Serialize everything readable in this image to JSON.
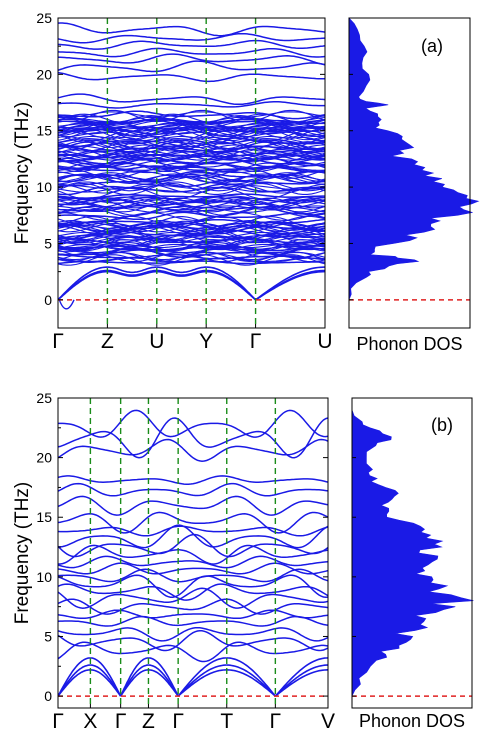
{
  "chart_data": [
    {
      "type": "line",
      "panel_label": "(a)",
      "ylabel": "Frequency (THz)",
      "ylim": [
        -2.5,
        25
      ],
      "yticks": [
        0,
        5,
        10,
        15,
        20,
        25
      ],
      "x_tick_labels": [
        "Γ",
        "Z",
        "U",
        "Y",
        "Γ",
        "U"
      ],
      "x_tick_positions": [
        0,
        0.185,
        0.37,
        0.555,
        0.74,
        1.0
      ],
      "zero_line": 0,
      "colors": {
        "bands": "#1a1ae6",
        "high_symmetry_lines": "#1a8c1a",
        "fermi_line": "#e02020"
      },
      "acoustic_max": [
        2.6,
        2.5,
        2.9
      ],
      "band_count_estimate": 120,
      "dense_band_region": [
        3.5,
        16.5
      ],
      "band_frequencies_at_gamma": [
        3.3,
        3.8,
        4.1,
        4.6,
        5.2,
        5.8,
        6.3,
        6.9,
        7.4,
        8.0,
        8.6,
        9.2,
        9.8,
        10.4,
        11.0,
        11.6,
        12.2,
        12.8,
        13.4,
        14.0,
        15.0,
        15.8,
        16.4,
        17.3,
        17.8,
        19.8,
        20.6,
        21.3,
        21.9,
        22.6,
        23.2,
        24.0
      ],
      "dos": {
        "xlabel": "Phonon DOS",
        "freq": [
          0,
          1,
          2,
          2.5,
          3,
          3.4,
          3.7,
          4,
          4.5,
          5,
          5.5,
          6,
          6.5,
          7,
          7.5,
          8,
          8.5,
          9,
          9.5,
          10,
          10.5,
          11,
          11.5,
          12,
          12.5,
          13,
          13.5,
          14,
          14.5,
          15,
          15.5,
          16,
          16.5,
          17,
          17.3,
          17.6,
          18,
          19,
          20,
          21,
          22,
          23,
          24,
          25
        ],
        "value": [
          0,
          0.05,
          0.12,
          0.2,
          0.35,
          0.55,
          0.45,
          0.2,
          0.22,
          0.4,
          0.55,
          0.6,
          0.7,
          0.78,
          0.88,
          0.95,
          1.0,
          0.96,
          0.88,
          0.8,
          0.72,
          0.66,
          0.6,
          0.55,
          0.5,
          0.48,
          0.58,
          0.45,
          0.42,
          0.3,
          0.25,
          0.28,
          0.22,
          0.15,
          0.35,
          0.12,
          0.1,
          0.14,
          0.16,
          0.1,
          0.14,
          0.12,
          0.1,
          0
        ]
      }
    },
    {
      "type": "line",
      "panel_label": "(b)",
      "ylabel": "Frequency (THz)",
      "ylim": [
        -1,
        25
      ],
      "yticks": [
        0,
        5,
        10,
        15,
        20,
        25
      ],
      "x_tick_labels": [
        "Γ",
        "X",
        "Γ",
        "Z",
        "Γ",
        "T",
        "Γ",
        "V"
      ],
      "x_tick_positions": [
        0,
        0.12,
        0.232,
        0.335,
        0.445,
        0.625,
        0.805,
        1.0
      ],
      "zero_line": 0,
      "colors": {
        "bands": "#1a1ae6",
        "high_symmetry_lines": "#1a8c1a",
        "fermi_line": "#e02020"
      },
      "acoustic_max": [
        3.2,
        2.6,
        2.2
      ],
      "band_count_estimate": 60,
      "band_frequencies_at_gamma": [
        3.8,
        4.6,
        5.3,
        6.2,
        6.8,
        7.5,
        8.2,
        8.8,
        9.4,
        10.0,
        10.6,
        11.2,
        11.9,
        12.5,
        13.2,
        13.9,
        14.7,
        16.0,
        17.2,
        18.1,
        20.6,
        21.6,
        22.6
      ],
      "dos": {
        "xlabel": "Phonon DOS",
        "freq": [
          0,
          1,
          2,
          3,
          3.5,
          4,
          4.5,
          5,
          5.5,
          6,
          6.5,
          7,
          7.5,
          8,
          8.5,
          9,
          9.5,
          10,
          10.5,
          11,
          11.5,
          12,
          12.5,
          13,
          13.5,
          14,
          14.5,
          15,
          15.5,
          16,
          16.5,
          17,
          17.5,
          18,
          18.5,
          19,
          20,
          21,
          21.5,
          22,
          22.5,
          23,
          24,
          25
        ],
        "value": [
          0,
          0.05,
          0.1,
          0.2,
          0.3,
          0.38,
          0.45,
          0.5,
          0.52,
          0.55,
          0.62,
          0.7,
          0.88,
          1.0,
          0.8,
          0.72,
          0.66,
          0.7,
          0.62,
          0.68,
          0.7,
          0.6,
          0.75,
          0.78,
          0.7,
          0.62,
          0.52,
          0.3,
          0.28,
          0.25,
          0.3,
          0.4,
          0.32,
          0.2,
          0.18,
          0.16,
          0.14,
          0.18,
          0.32,
          0.3,
          0.12,
          0.05,
          0,
          0
        ]
      }
    }
  ]
}
